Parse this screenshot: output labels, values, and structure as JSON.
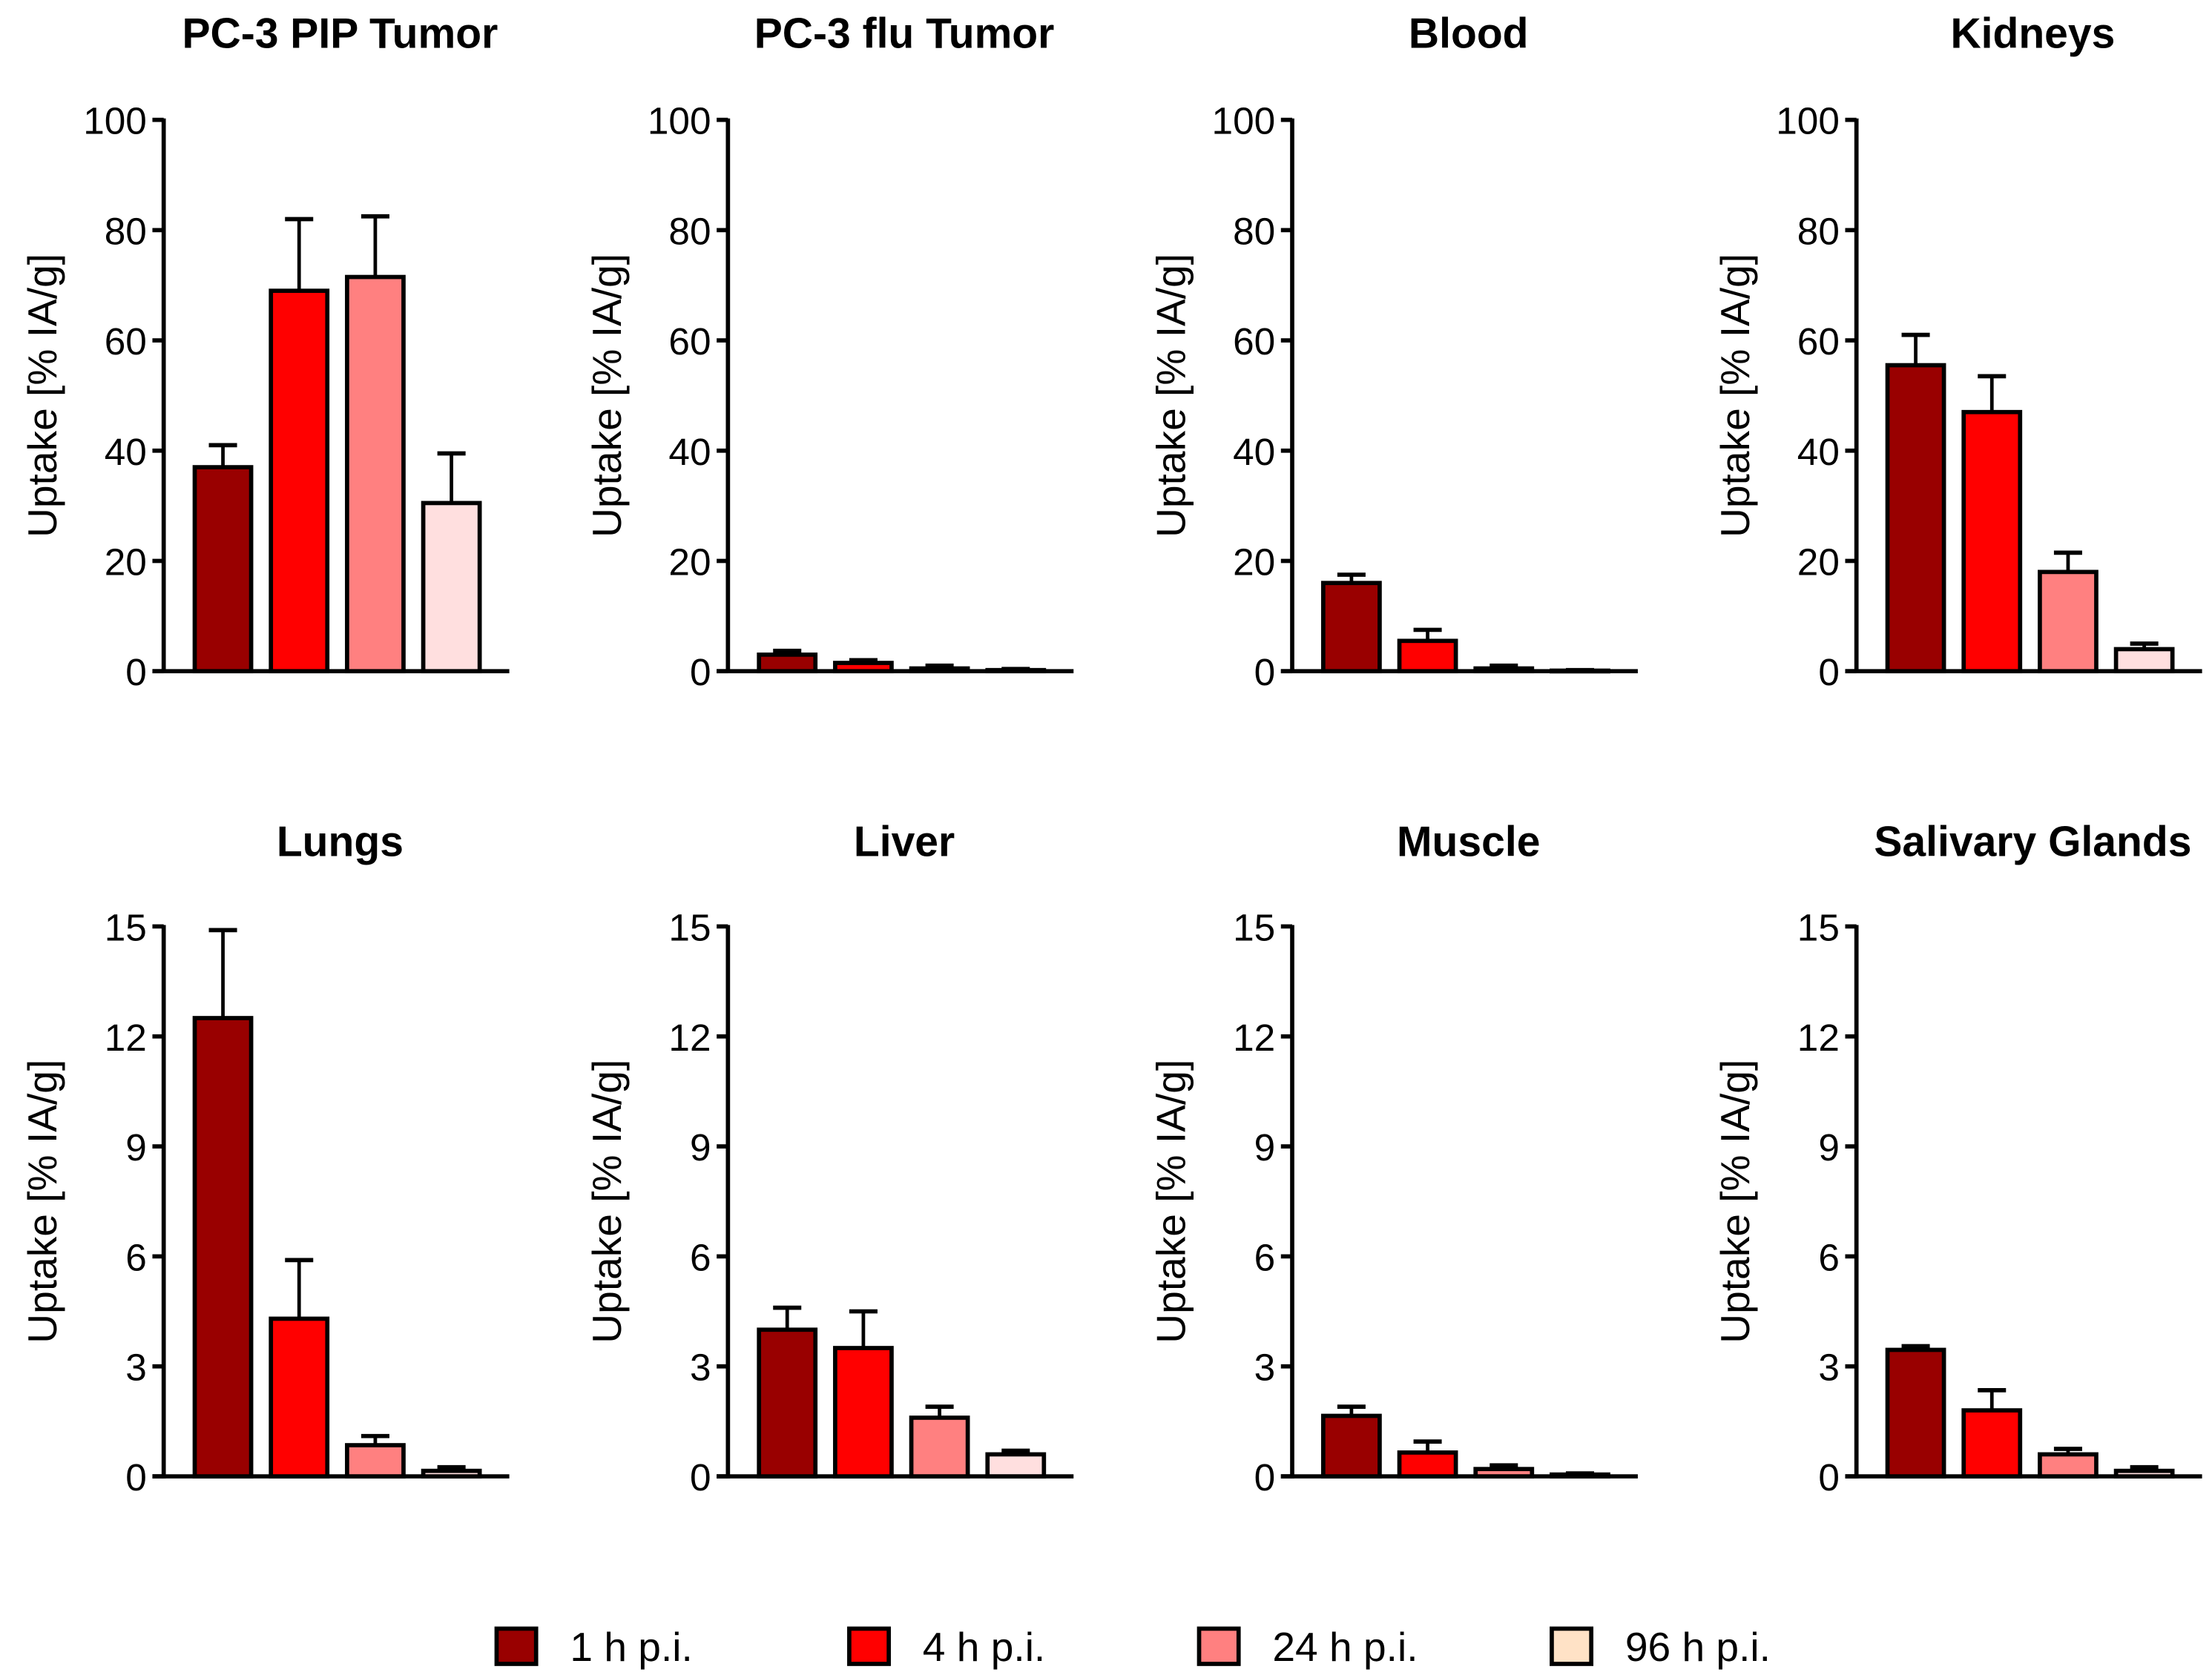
{
  "legend": [
    "1 h p.i.",
    "4 h p.i.",
    "24 h p.i.",
    "96 h p.i."
  ],
  "colors": [
    "#990000",
    "#ff0000",
    "#ff8080",
    "#ffdfdf"
  ],
  "legend_colors": [
    "#990000",
    "#ff0000",
    "#ff8080",
    "#ffe2c6"
  ],
  "chart_data": [
    {
      "type": "bar",
      "title": "PC-3 PIP Tumor",
      "ylabel": "Uptake [% IA/g]",
      "ylim": [
        0,
        100
      ],
      "yticks": [
        0,
        20,
        40,
        60,
        80,
        100
      ],
      "categories": [
        "1 h p.i.",
        "4 h p.i.",
        "24 h p.i.",
        "96 h p.i."
      ],
      "values": [
        37,
        69,
        71.5,
        30.5
      ],
      "errors": [
        4,
        13,
        11,
        9
      ]
    },
    {
      "type": "bar",
      "title": "PC-3 flu Tumor",
      "ylabel": "Uptake [% IA/g]",
      "ylim": [
        0,
        100
      ],
      "yticks": [
        0,
        20,
        40,
        60,
        80,
        100
      ],
      "categories": [
        "1 h p.i.",
        "4 h p.i.",
        "24 h p.i.",
        "96 h p.i."
      ],
      "values": [
        3,
        1.5,
        0.5,
        0.2
      ],
      "errors": [
        0.7,
        0.5,
        0.5,
        0.2
      ]
    },
    {
      "type": "bar",
      "title": "Blood",
      "ylabel": "Uptake [% IA/g]",
      "ylim": [
        0,
        100
      ],
      "yticks": [
        0,
        20,
        40,
        60,
        80,
        100
      ],
      "categories": [
        "1 h p.i.",
        "4 h p.i.",
        "24 h p.i.",
        "96 h p.i."
      ],
      "values": [
        16,
        5.5,
        0.5,
        0.1
      ],
      "errors": [
        1.5,
        2,
        0.5,
        0.1
      ]
    },
    {
      "type": "bar",
      "title": "Kidneys",
      "ylabel": "Uptake [% IA/g]",
      "ylim": [
        0,
        100
      ],
      "yticks": [
        0,
        20,
        40,
        60,
        80,
        100
      ],
      "categories": [
        "1 h p.i.",
        "4 h p.i.",
        "24 h p.i.",
        "96 h p.i."
      ],
      "values": [
        55.5,
        47,
        18,
        4
      ],
      "errors": [
        5.5,
        6.5,
        3.5,
        1
      ]
    },
    {
      "type": "bar",
      "title": "Lungs",
      "ylabel": "Uptake [% IA/g]",
      "ylim": [
        0,
        15
      ],
      "yticks": [
        0,
        3,
        6,
        9,
        12,
        15
      ],
      "categories": [
        "1 h p.i.",
        "4 h p.i.",
        "24 h p.i.",
        "96 h p.i."
      ],
      "values": [
        12.5,
        4.3,
        0.85,
        0.15
      ],
      "errors": [
        2.4,
        1.6,
        0.25,
        0.1
      ]
    },
    {
      "type": "bar",
      "title": "Liver",
      "ylabel": "Uptake [% IA/g]",
      "ylim": [
        0,
        15
      ],
      "yticks": [
        0,
        3,
        6,
        9,
        12,
        15
      ],
      "categories": [
        "1 h p.i.",
        "4 h p.i.",
        "24 h p.i.",
        "96 h p.i."
      ],
      "values": [
        4,
        3.5,
        1.6,
        0.6
      ],
      "errors": [
        0.6,
        1,
        0.3,
        0.1
      ]
    },
    {
      "type": "bar",
      "title": "Muscle",
      "ylabel": "Uptake [% IA/g]",
      "ylim": [
        0,
        15
      ],
      "yticks": [
        0,
        3,
        6,
        9,
        12,
        15
      ],
      "categories": [
        "1 h p.i.",
        "4 h p.i.",
        "24 h p.i.",
        "96 h p.i."
      ],
      "values": [
        1.65,
        0.65,
        0.2,
        0.05
      ],
      "errors": [
        0.25,
        0.3,
        0.1,
        0.03
      ]
    },
    {
      "type": "bar",
      "title": "Salivary Glands",
      "ylabel": "Uptake [% IA/g]",
      "ylim": [
        0,
        15
      ],
      "yticks": [
        0,
        3,
        6,
        9,
        12,
        15
      ],
      "categories": [
        "1 h p.i.",
        "4 h p.i.",
        "24 h p.i.",
        "96 h p.i."
      ],
      "values": [
        3.45,
        1.8,
        0.6,
        0.15
      ],
      "errors": [
        0.1,
        0.55,
        0.15,
        0.1
      ]
    }
  ]
}
